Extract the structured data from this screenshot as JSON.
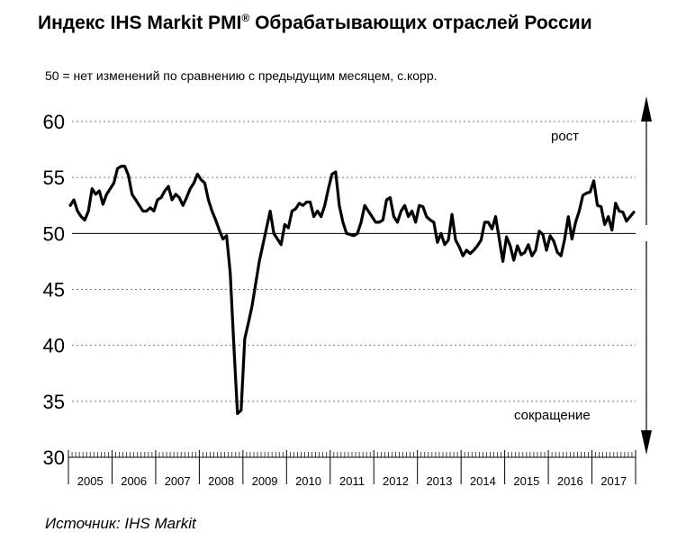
{
  "title": "Индекс IHS Markit PMI",
  "title_sup": "®",
  "title_rest": " Обрабатывающих отраслей России",
  "subtitle": "50 = нет изменений по сравнению с предыдущим месяцем, с.корр.",
  "source": "Источник: IHS Markit",
  "chart_data": {
    "type": "line",
    "ylim": [
      30,
      60
    ],
    "yticks": [
      30,
      35,
      40,
      45,
      50,
      55,
      60
    ],
    "years": [
      "2005",
      "2006",
      "2007",
      "2008",
      "2009",
      "2010",
      "2011",
      "2012",
      "2013",
      "2014",
      "2015",
      "2016",
      "2017"
    ],
    "x_start": "2005-01",
    "reference_line": 50,
    "annotations": {
      "up": "рост",
      "down": "сокращение"
    },
    "grid": "dotted horizontal",
    "series": [
      {
        "values": [
          52.5,
          53.0,
          52.0,
          51.5,
          51.2,
          52.0,
          54.0,
          53.5,
          53.8,
          52.6,
          53.5,
          54.0,
          54.5,
          55.8,
          56.0,
          56.0,
          55.2,
          53.5,
          53.0,
          52.5,
          52.0,
          52.0,
          52.3,
          52.0,
          53.0,
          53.2,
          53.8,
          54.2,
          53.0,
          53.5,
          53.2,
          52.5,
          53.2,
          54.0,
          54.5,
          55.3,
          54.8,
          54.5,
          53.0,
          52.0,
          51.2,
          50.3,
          49.5,
          49.8,
          46.5,
          40.0,
          33.9,
          34.2,
          40.6,
          42.0,
          43.5,
          45.5,
          47.5,
          49.0,
          50.5,
          52.0,
          50.0,
          49.5,
          49.0,
          50.8,
          50.5,
          52.0,
          52.2,
          52.7,
          52.5,
          52.8,
          52.8,
          51.5,
          52.0,
          51.5,
          52.5,
          54.0,
          55.3,
          55.5,
          52.5,
          51.0,
          50.0,
          49.9,
          49.8,
          50.0,
          51.0,
          52.5,
          52.0,
          51.5,
          51.0,
          51.0,
          51.2,
          53.0,
          53.2,
          51.5,
          51.0,
          52.0,
          52.5,
          51.5,
          52.0,
          51.0,
          52.5,
          52.4,
          51.5,
          51.2,
          51.0,
          49.2,
          50.0,
          49.0,
          49.4,
          51.7,
          49.4,
          48.8,
          48.0,
          48.5,
          48.2,
          48.5,
          48.9,
          49.4,
          51.0,
          51.0,
          50.4,
          51.5,
          49.5,
          47.5,
          49.7,
          48.9,
          47.6,
          48.9,
          48.1,
          48.3,
          49.0,
          48.0,
          48.5,
          50.2,
          49.9,
          48.5,
          49.8,
          49.3,
          48.3,
          48.0,
          49.5,
          51.5,
          49.5,
          51.0,
          52.0,
          53.4,
          53.6,
          53.7,
          54.7,
          52.5,
          52.4,
          50.8,
          51.5,
          50.3,
          52.7,
          52.0,
          51.9,
          51.1,
          51.5,
          51.9
        ]
      }
    ]
  }
}
